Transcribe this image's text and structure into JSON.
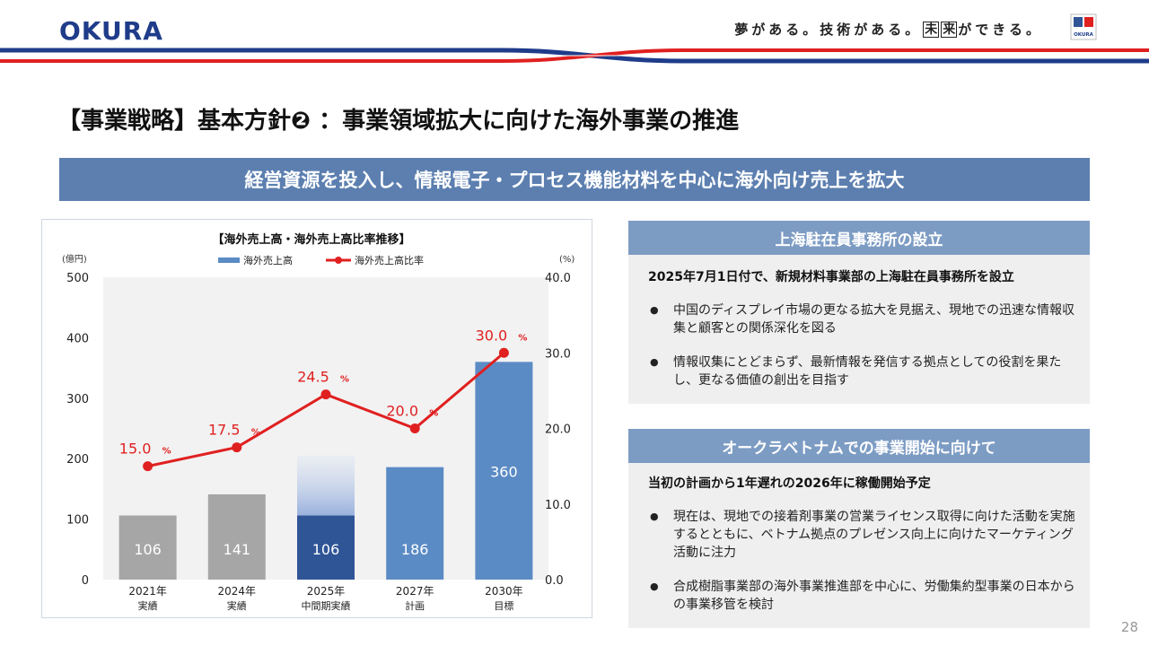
{
  "header": {
    "logo_text": "OKURA",
    "tagline_a": "夢がある。技術がある。",
    "tagline_box1": "未",
    "tagline_box2": "来",
    "tagline_b": "ができる。",
    "mark_text": "OKURA"
  },
  "title": "【事業戦略】基本方針❷ ：事業領域拡大に向けた海外事業の推進",
  "banner": "経営資源を投入し、情報電子・プロセス機能材料を中心に海外向け売上を拡大",
  "chart_data": {
    "type": "bar",
    "title": "【海外売上高・海外売上高比率推移】",
    "left_unit": "(億円)",
    "right_unit": "(%)",
    "categories": [
      [
        "2021年",
        "実績"
      ],
      [
        "2024年",
        "実績"
      ],
      [
        "2025年",
        "中間期実績"
      ],
      [
        "2027年",
        "計画"
      ],
      [
        "2030年",
        "目標"
      ]
    ],
    "series": [
      {
        "name": "海外売上高",
        "type": "bar",
        "axis": "left",
        "values": [
          106,
          141,
          106,
          186,
          360
        ],
        "labels": [
          "106",
          "141",
          "106",
          "186",
          "360"
        ]
      },
      {
        "name": "海外売上高比率",
        "type": "line",
        "axis": "right",
        "values": [
          15.0,
          17.5,
          24.5,
          20.0,
          30.0
        ],
        "labels": [
          "15.0",
          "17.5",
          "24.5",
          "20.0",
          "30.0"
        ],
        "suffix": "%"
      }
    ],
    "bar_colors": [
      "#a6a6a6",
      "#a6a6a6",
      "#2f5597",
      "#5b8bc5",
      "#5b8bc5"
    ],
    "faded_extension": {
      "category_index": 2,
      "top_value": 205
    },
    "line_color": "#e02020",
    "y_left": {
      "min": 0,
      "max": 500,
      "ticks": [
        "0",
        "100",
        "200",
        "300",
        "400",
        "500"
      ]
    },
    "y_right": {
      "min": 0,
      "max": 40,
      "ticks": [
        "0.0",
        "10.0",
        "20.0",
        "30.0",
        "40.0"
      ]
    },
    "legend_position": "top"
  },
  "panel1": {
    "heading": "上海駐在員事務所の設立",
    "lead": "2025年7月1日付で、新規材料事業部の上海駐在員事務所を設立",
    "bullets": [
      "中国のディスプレイ市場の更なる拡大を見据え、現地での迅速な情報収集と顧客との関係深化を図る",
      "情報収集にとどまらず、最新情報を発信する拠点としての役割を果たし、更なる価値の創出を目指す"
    ]
  },
  "panel2": {
    "heading": "オークラベトナムでの事業開始に向けて",
    "lead": "当初の計画から1年遅れの2026年に稼働開始予定",
    "bullets": [
      "現在は、現地での接着剤事業の営業ライセンス取得に向けた活動を実施するとともに、ベトナム拠点のプレゼンス向上に向けたマーケティング活動に注力",
      "合成樹脂事業部の海外事業推進部を中心に、労働集約型事業の日本からの事業移管を検討"
    ]
  },
  "page_number": "28"
}
